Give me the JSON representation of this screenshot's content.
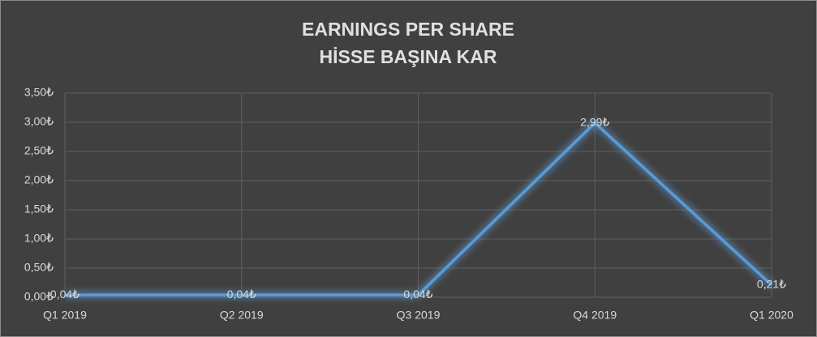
{
  "chart_data": {
    "type": "line",
    "title": [
      "EARNINGS PER SHARE",
      "HİSSE BAŞINA KAR"
    ],
    "categories": [
      "Q1 2019",
      "Q2 2019",
      "Q3 2019",
      "Q4 2019",
      "Q1 2020"
    ],
    "series": [
      {
        "color": "#5b9bd5",
        "values": [
          0.04,
          0.04,
          0.04,
          2.99,
          0.21
        ],
        "value_labels": [
          "0,04₺",
          "0,04₺",
          "0,04₺",
          "2,99₺",
          "0,21₺"
        ]
      }
    ],
    "ylim": [
      0,
      3.5
    ],
    "yticks": [
      {
        "value": 0,
        "label": "0,00₺"
      },
      {
        "value": 0.5,
        "label": "0,50₺"
      },
      {
        "value": 1,
        "label": "1,00₺"
      },
      {
        "value": 1.5,
        "label": "1,50₺"
      },
      {
        "value": 2,
        "label": "2,00₺"
      },
      {
        "value": 2.5,
        "label": "2,50₺"
      },
      {
        "value": 3,
        "label": "3,00₺"
      },
      {
        "value": 3.5,
        "label": "3,50₺"
      }
    ],
    "grid": true
  }
}
